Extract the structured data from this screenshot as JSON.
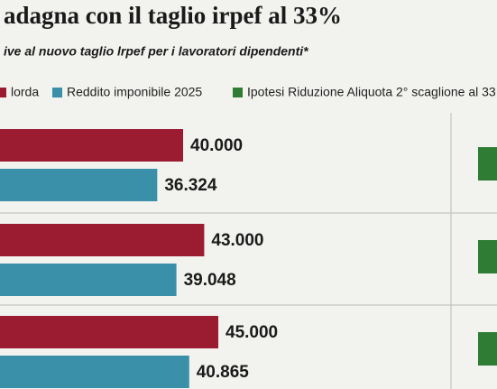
{
  "chart_data": {
    "type": "bar",
    "title": "adagna con il taglio irpef al 33%",
    "subtitle": "ive al nuovo taglio lrpef per i lavoratori dipendenti*",
    "legend": [
      {
        "name": "lorda",
        "color": "#9b1c31"
      },
      {
        "name": "Reddito imponibile 2025",
        "color": "#3a8fa9"
      },
      {
        "name": "Ipotesi Riduzione Aliquota 2° scaglione al 33",
        "color": "#2f7d34"
      }
    ],
    "series": [
      {
        "color": "#9b1c31",
        "values": [
          40000,
          43000,
          45000
        ],
        "value_labels": [
          "40.000",
          "43.000",
          "45.000"
        ]
      },
      {
        "color": "#3a8fa9",
        "values": [
          36324,
          39048,
          40865
        ],
        "value_labels": [
          "36.324",
          "39.048",
          "40.865"
        ]
      }
    ]
  }
}
